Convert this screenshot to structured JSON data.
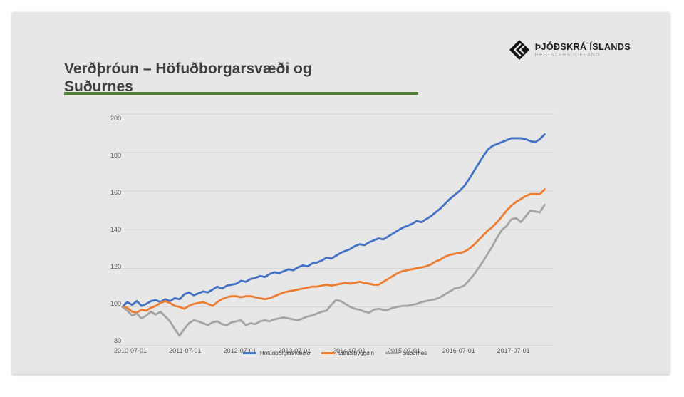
{
  "slide": {
    "title_line1": "Verðþróun – Höfuðborgarsvæði og",
    "title_line2": "Suðurnes"
  },
  "logo": {
    "name": "ÞJÓÐSKRÁ ÍSLANDS",
    "subname": "REGISTERS ICELAND"
  },
  "colors": {
    "accent_green": "#548235",
    "slide_bg": "#e7e7e7",
    "gridline": "#d6d6d6",
    "axis_text": "#595959",
    "title_text": "#3f3f3f",
    "series_blue": "#4472C4",
    "series_orange": "#ED7D31",
    "series_gray": "#A5A5A5"
  },
  "chart_data": {
    "type": "line",
    "title": "",
    "xlabel": "",
    "ylabel": "",
    "x_frequency": "monthly",
    "x_start": "2010-07",
    "x_end": "2017-12",
    "x_tick_labels": [
      "2010-07-01",
      "2011-07-01",
      "2012-07-01",
      "2013-07-01",
      "2014-07-01",
      "2015-07-01",
      "2016-07-01",
      "2017-07-01"
    ],
    "y_ticks": [
      80,
      100,
      120,
      140,
      160,
      180,
      200
    ],
    "ylim": [
      80,
      200
    ],
    "grid": true,
    "legend_position": "bottom",
    "series": [
      {
        "name": "Höfuðborgarsvæðið",
        "color": "#4472C4",
        "values": [
          100,
          102.5,
          101,
          103,
          100.5,
          101.5,
          103,
          103.5,
          102.5,
          104,
          103,
          104.5,
          104,
          106.5,
          107.5,
          106,
          107,
          108,
          107.5,
          109,
          110.5,
          109.5,
          111,
          111.5,
          112,
          113.5,
          113,
          114.5,
          115,
          116,
          115.5,
          117,
          118,
          117.5,
          118.5,
          119.5,
          119,
          120.5,
          121.5,
          121,
          122.5,
          123,
          124,
          125.5,
          125,
          126.5,
          128,
          129,
          130,
          131.5,
          132.5,
          132,
          133.5,
          134.5,
          135.5,
          135,
          136.5,
          138,
          139.5,
          141,
          142,
          143,
          144.5,
          144,
          145.5,
          147,
          149,
          151,
          153.5,
          156,
          158,
          160,
          162.5,
          166,
          170,
          174,
          178,
          181.5,
          183.5,
          184.5,
          185.5,
          186.5,
          187.5,
          187.5,
          187.5,
          187,
          186,
          185.5,
          187,
          189.5
        ]
      },
      {
        "name": "Landsbyggðin",
        "color": "#ED7D31",
        "values": [
          100,
          99.5,
          97.5,
          97,
          98.5,
          98,
          99.5,
          100.5,
          102,
          103,
          102,
          100.5,
          100,
          99,
          100.5,
          101.5,
          102,
          102.5,
          101.5,
          100.5,
          102.5,
          104,
          105,
          105.5,
          105.5,
          105,
          105.5,
          105.5,
          105,
          104.5,
          104,
          104.5,
          105.5,
          106.5,
          107.5,
          108,
          108.5,
          109,
          109.5,
          110,
          110.5,
          110.5,
          111,
          111.5,
          111,
          111.5,
          112,
          112.5,
          112,
          112.5,
          113,
          112.5,
          112,
          111.5,
          111.5,
          113,
          114.5,
          116,
          117.5,
          118.5,
          119,
          119.5,
          120,
          120.5,
          121,
          122,
          123.5,
          124.5,
          126,
          127,
          127.5,
          128,
          128.5,
          130,
          132,
          134.5,
          137,
          139.5,
          141.5,
          144,
          147,
          150,
          152.5,
          154.5,
          156,
          157.5,
          158.5,
          158.5,
          158.5,
          161
        ]
      },
      {
        "name": "Suðurnes",
        "color": "#A5A5A5",
        "values": [
          100,
          98,
          95.5,
          96.5,
          94,
          95.5,
          97.5,
          96,
          97.5,
          95,
          92.5,
          88.5,
          85,
          88.5,
          91.5,
          93,
          92.5,
          91.5,
          90.5,
          92,
          92.5,
          91,
          90.5,
          92,
          92.5,
          93,
          90.5,
          91.5,
          91,
          92.5,
          93,
          92.5,
          93.5,
          94,
          94.5,
          94,
          93.5,
          93,
          94,
          95,
          95.5,
          96.5,
          97.5,
          98,
          101,
          103.5,
          103,
          101.5,
          100,
          99,
          98.5,
          97.5,
          97,
          98.5,
          99,
          98.5,
          98.5,
          99.5,
          100,
          100.5,
          100.5,
          101,
          101.5,
          102.5,
          103,
          103.5,
          104,
          105,
          106.5,
          108,
          109.5,
          110,
          111,
          113.5,
          116.5,
          120,
          123.5,
          127.5,
          131.5,
          136,
          140,
          142,
          145.5,
          146,
          144,
          147,
          150,
          149.5,
          149,
          153
        ]
      }
    ]
  }
}
